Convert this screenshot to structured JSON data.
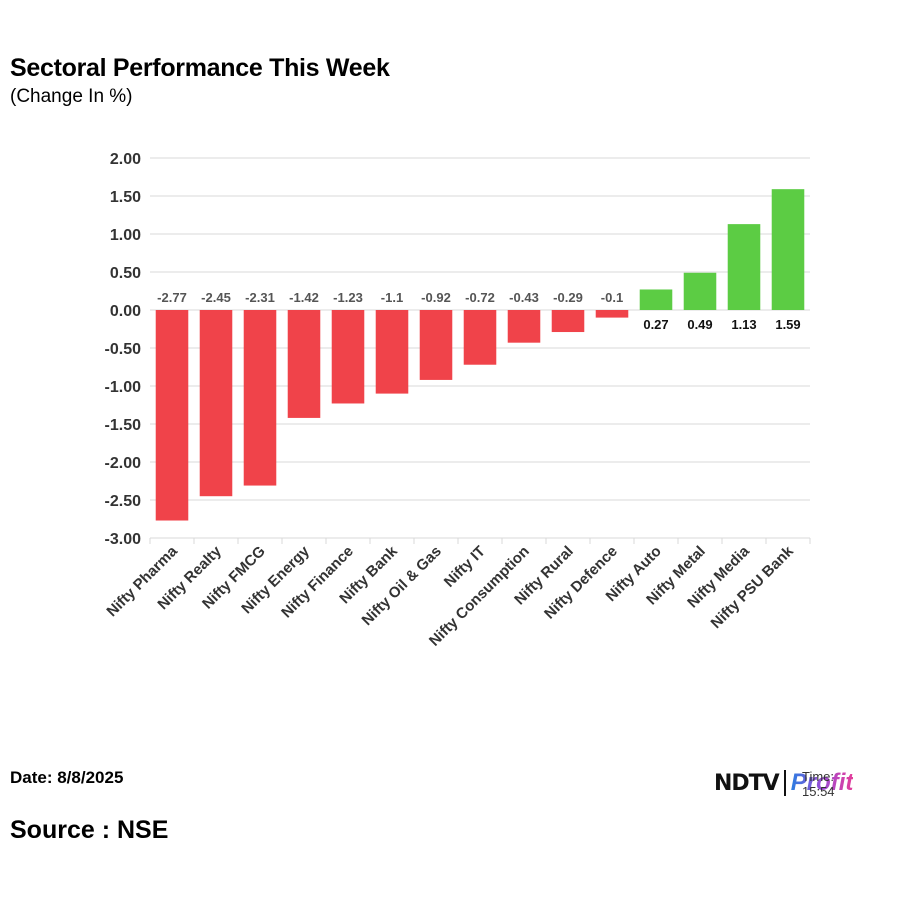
{
  "title": "Sectoral Performance This Week",
  "subtitle": "(Change In %)",
  "footer": {
    "date": "Date: 8/8/2025",
    "source": "Source : NSE"
  },
  "logo": {
    "brand": "NDTV",
    "product": "Profit",
    "time_text": "Time: 15:54"
  },
  "colors": {
    "negative": "#f0434a",
    "positive": "#5ccc44",
    "negative_label": "#555555",
    "positive_label": "#111111",
    "grid": "#d9d9d9"
  },
  "chart_data": {
    "type": "bar",
    "categories": [
      "Nifty Pharma",
      "Nifty Realty",
      "Nifty FMCG",
      "Nifty Energy",
      "Nifty Finance",
      "Nifty Bank",
      "Nifty Oil & Gas",
      "Nifty IT",
      "Nifty Consumption",
      "Nifty Rural",
      "Nifty Defence",
      "Nifty Auto",
      "Nifty Metal",
      "Nifty Media",
      "Nifty PSU Bank"
    ],
    "values": [
      -2.77,
      -2.45,
      -2.31,
      -1.42,
      -1.23,
      -1.1,
      -0.92,
      -0.72,
      -0.43,
      -0.29,
      -0.1,
      0.27,
      0.49,
      1.13,
      1.59
    ],
    "value_labels": [
      "-2.77",
      "-2.45",
      "-2.31",
      "-1.42",
      "-1.23",
      "-1.1",
      "-0.92",
      "-0.72",
      "-0.43",
      "-0.29",
      "-0.1",
      "0.27",
      "0.49",
      "1.13",
      "1.59"
    ],
    "yticks": [
      "2.00",
      "1.50",
      "1.00",
      "0.50",
      "0.00",
      "-0.50",
      "-1.00",
      "-1.50",
      "-2.00",
      "-2.50",
      "-3.00"
    ],
    "ylim": [
      -3,
      2
    ],
    "grid": true,
    "legend": "none"
  }
}
